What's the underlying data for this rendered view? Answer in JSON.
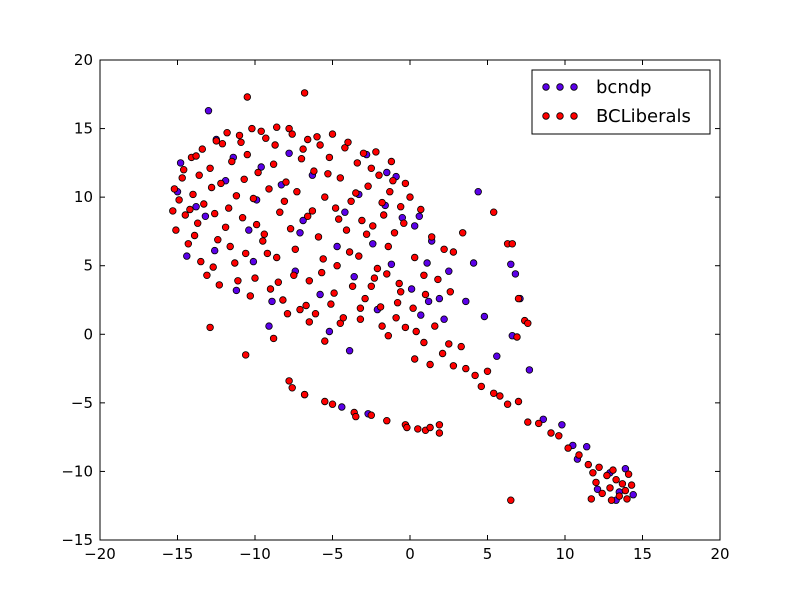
{
  "chart_data": {
    "type": "scatter",
    "title": "",
    "xlabel": "",
    "ylabel": "",
    "xlim": [
      -20,
      20
    ],
    "ylim": [
      -15,
      20
    ],
    "xticks": [
      -20,
      -15,
      -10,
      -5,
      0,
      5,
      10,
      15,
      20
    ],
    "yticks": [
      -15,
      -10,
      -5,
      0,
      5,
      10,
      15,
      20
    ],
    "grid": false,
    "legend_position": "top-right",
    "series": [
      {
        "name": "bcndp",
        "color": "#5b00e8",
        "points": [
          [
            -13,
            16.3
          ],
          [
            -14.8,
            12.5
          ],
          [
            -15,
            10.4
          ],
          [
            -13.2,
            8.6
          ],
          [
            -14.4,
            5.7
          ],
          [
            -12.5,
            14.2
          ],
          [
            -11.4,
            12.9
          ],
          [
            -11.2,
            3.2
          ],
          [
            -10.4,
            7.6
          ],
          [
            -10.1,
            5.3
          ],
          [
            -9.6,
            12.2
          ],
          [
            -9.1,
            0.6
          ],
          [
            -8.3,
            10.9
          ],
          [
            -7.8,
            13.2
          ],
          [
            -7.4,
            4.6
          ],
          [
            -6.9,
            8.3
          ],
          [
            -6.3,
            11.6
          ],
          [
            -5.8,
            2.9
          ],
          [
            -5.2,
            0.2
          ],
          [
            -4.7,
            6.4
          ],
          [
            -4.2,
            8.9
          ],
          [
            -3.9,
            -1.2
          ],
          [
            -3.6,
            4.2
          ],
          [
            -2.8,
            13.1
          ],
          [
            -2.4,
            6.6
          ],
          [
            -2.1,
            1.8
          ],
          [
            -1.6,
            9.4
          ],
          [
            -1.2,
            5.1
          ],
          [
            -0.9,
            11.5
          ],
          [
            -0.5,
            8.5
          ],
          [
            0.1,
            3.3
          ],
          [
            0.3,
            7.9
          ],
          [
            0.7,
            1.4
          ],
          [
            1.1,
            5.2
          ],
          [
            1.4,
            6.8
          ],
          [
            1.2,
            2.4
          ],
          [
            1.9,
            2.6
          ],
          [
            2.5,
            4.6
          ],
          [
            3.6,
            2.4
          ],
          [
            4.4,
            10.4
          ],
          [
            4.8,
            1.3
          ],
          [
            4.1,
            5.2
          ],
          [
            6.5,
            5.1
          ],
          [
            6.8,
            4.4
          ],
          [
            6.6,
            -0.1
          ],
          [
            7.1,
            2.6
          ],
          [
            5.6,
            -1.6
          ],
          [
            7.7,
            -2.6
          ],
          [
            8.6,
            -6.2
          ],
          [
            9.8,
            -6.6
          ],
          [
            10.5,
            -8.1
          ],
          [
            10.8,
            -9.1
          ],
          [
            11.4,
            -8.2
          ],
          [
            12.9,
            -10.1
          ],
          [
            13.3,
            -12.1
          ],
          [
            13.9,
            -9.8
          ],
          [
            14.4,
            -11.7
          ],
          [
            12.1,
            -11.3
          ],
          [
            -4.4,
            -5.3
          ],
          [
            -6.8,
            -4.4
          ],
          [
            -2.7,
            -5.8
          ],
          [
            -1.5,
            11.8
          ],
          [
            -11.9,
            11.2
          ],
          [
            -12.6,
            6.1
          ],
          [
            -8.9,
            2.4
          ],
          [
            -13.8,
            9.3
          ],
          [
            -9.9,
            9.8
          ],
          [
            -7.1,
            7.4
          ],
          [
            -3.3,
            10.2
          ],
          [
            2.2,
            1.1
          ],
          [
            0.6,
            8.6
          ],
          [
            13.5,
            -11.5
          ]
        ]
      },
      {
        "name": "BCLiberals",
        "color": "#ff0000",
        "points": [
          [
            -10.5,
            17.3
          ],
          [
            -6.8,
            17.6
          ],
          [
            -12.9,
            0.5
          ],
          [
            -10.6,
            -1.5
          ],
          [
            -8.8,
            -0.3
          ],
          [
            -7.9,
            1.5
          ],
          [
            -6.5,
            0.9
          ],
          [
            -5.5,
            -0.5
          ],
          [
            -4.5,
            0.8
          ],
          [
            -3.2,
            1.9
          ],
          [
            -2.5,
            3.5
          ],
          [
            -1.8,
            0.6
          ],
          [
            -0.8,
            2.3
          ],
          [
            -15.3,
            9.0
          ],
          [
            -15.1,
            7.6
          ],
          [
            -14.7,
            11.4
          ],
          [
            -14.3,
            6.6
          ],
          [
            -14.1,
            12.9
          ],
          [
            -13.7,
            8.1
          ],
          [
            -13.4,
            13.5
          ],
          [
            -13.1,
            4.3
          ],
          [
            -12.8,
            10.7
          ],
          [
            -12.4,
            6.9
          ],
          [
            -12.1,
            13.9
          ],
          [
            -11.7,
            9.2
          ],
          [
            -11.3,
            5.2
          ],
          [
            -11.0,
            14.5
          ],
          [
            -10.7,
            11.3
          ],
          [
            -10.3,
            2.8
          ],
          [
            -9.9,
            8.0
          ],
          [
            -9.6,
            14.8
          ],
          [
            -9.2,
            5.9
          ],
          [
            -8.8,
            12.4
          ],
          [
            -8.5,
            3.8
          ],
          [
            -8.1,
            9.7
          ],
          [
            -7.8,
            15.0
          ],
          [
            -7.4,
            6.2
          ],
          [
            -7.0,
            12.8
          ],
          [
            -6.7,
            2.1
          ],
          [
            -6.3,
            9.0
          ],
          [
            -6.0,
            14.4
          ],
          [
            -5.6,
            5.5
          ],
          [
            -5.3,
            11.7
          ],
          [
            -4.9,
            3.0
          ],
          [
            -4.6,
            8.4
          ],
          [
            -4.2,
            13.6
          ],
          [
            -3.9,
            6.0
          ],
          [
            -3.5,
            10.3
          ],
          [
            -3.2,
            1.1
          ],
          [
            -2.8,
            7.3
          ],
          [
            -2.5,
            12.1
          ],
          [
            -2.1,
            4.8
          ],
          [
            -1.8,
            9.6
          ],
          [
            -1.4,
            6.4
          ],
          [
            -1.1,
            11.2
          ],
          [
            -0.7,
            3.7
          ],
          [
            -0.4,
            8.1
          ],
          [
            0.0,
            10.0
          ],
          [
            0.3,
            5.6
          ],
          [
            0.7,
            9.1
          ],
          [
            1.0,
            2.9
          ],
          [
            1.4,
            7.1
          ],
          [
            1.8,
            4.0
          ],
          [
            2.2,
            6.2
          ],
          [
            2.8,
            6.0
          ],
          [
            3.4,
            7.4
          ],
          [
            2.6,
            3.1
          ],
          [
            5.4,
            8.9
          ],
          [
            6.3,
            6.6
          ],
          [
            6.6,
            6.6
          ],
          [
            7.0,
            2.6
          ],
          [
            7.4,
            1.0
          ],
          [
            7.6,
            0.8
          ],
          [
            6.9,
            -0.2
          ],
          [
            -1.4,
            -0.1
          ],
          [
            -0.3,
            0.5
          ],
          [
            0.4,
            0.2
          ],
          [
            0.3,
            -1.8
          ],
          [
            0.9,
            -0.6
          ],
          [
            1.3,
            -2.2
          ],
          [
            1.6,
            0.6
          ],
          [
            2.1,
            -1.4
          ],
          [
            2.5,
            -0.7
          ],
          [
            2.8,
            -2.3
          ],
          [
            3.3,
            -0.9
          ],
          [
            3.6,
            -2.5
          ],
          [
            4.2,
            -3.0
          ],
          [
            4.6,
            -3.8
          ],
          [
            5.0,
            -2.7
          ],
          [
            5.4,
            -4.3
          ],
          [
            5.8,
            -4.5
          ],
          [
            6.3,
            -5.1
          ],
          [
            7.0,
            -4.9
          ],
          [
            7.6,
            -6.4
          ],
          [
            8.3,
            -6.5
          ],
          [
            9.1,
            -7.2
          ],
          [
            9.6,
            -7.4
          ],
          [
            10.2,
            -8.3
          ],
          [
            10.9,
            -8.8
          ],
          [
            11.5,
            -9.5
          ],
          [
            11.8,
            -10.1
          ],
          [
            12.0,
            -10.8
          ],
          [
            12.4,
            -11.6
          ],
          [
            12.7,
            -10.3
          ],
          [
            12.9,
            -11.2
          ],
          [
            13.1,
            -9.9
          ],
          [
            13.3,
            -10.6
          ],
          [
            13.5,
            -11.8
          ],
          [
            13.7,
            -10.9
          ],
          [
            13.9,
            -11.4
          ],
          [
            14.1,
            -10.2
          ],
          [
            14.3,
            -11.0
          ],
          [
            12.2,
            -9.7
          ],
          [
            11.7,
            -12.0
          ],
          [
            13.0,
            -12.1
          ],
          [
            14.0,
            -12.0
          ],
          [
            6.5,
            -12.1
          ],
          [
            -7.8,
            -3.4
          ],
          [
            -7.6,
            -3.9
          ],
          [
            -6.8,
            -4.4
          ],
          [
            -5.5,
            -4.9
          ],
          [
            -5.0,
            -5.1
          ],
          [
            -3.6,
            -5.7
          ],
          [
            -3.5,
            -6.0
          ],
          [
            -2.5,
            -5.9
          ],
          [
            -1.5,
            -6.3
          ],
          [
            -0.3,
            -6.6
          ],
          [
            -0.2,
            -6.8
          ],
          [
            0.5,
            -6.9
          ],
          [
            1.0,
            -7.0
          ],
          [
            1.3,
            -6.8
          ],
          [
            1.9,
            -7.2
          ],
          [
            1.9,
            -6.6
          ],
          [
            -14.9,
            9.8
          ],
          [
            -14.5,
            8.7
          ],
          [
            -14.0,
            10.2
          ],
          [
            -13.6,
            11.6
          ],
          [
            -13.3,
            9.5
          ],
          [
            -12.9,
            12.1
          ],
          [
            -12.6,
            8.8
          ],
          [
            -12.2,
            11.0
          ],
          [
            -11.9,
            7.8
          ],
          [
            -11.5,
            12.6
          ],
          [
            -11.2,
            10.1
          ],
          [
            -10.8,
            8.5
          ],
          [
            -10.5,
            13.1
          ],
          [
            -10.1,
            9.9
          ],
          [
            -9.8,
            11.8
          ],
          [
            -9.4,
            7.3
          ],
          [
            -9.1,
            10.6
          ],
          [
            -8.7,
            13.8
          ],
          [
            -8.4,
            8.9
          ],
          [
            -8.0,
            11.1
          ],
          [
            -7.7,
            7.7
          ],
          [
            -7.3,
            10.4
          ],
          [
            -6.9,
            13.5
          ],
          [
            -6.6,
            8.6
          ],
          [
            -6.2,
            11.9
          ],
          [
            -5.9,
            7.1
          ],
          [
            -5.5,
            10.0
          ],
          [
            -5.2,
            12.9
          ],
          [
            -4.8,
            9.2
          ],
          [
            -4.5,
            11.4
          ],
          [
            -4.1,
            7.6
          ],
          [
            -3.8,
            9.7
          ],
          [
            -3.4,
            12.5
          ],
          [
            -3.1,
            8.3
          ],
          [
            -2.7,
            10.8
          ],
          [
            -2.4,
            7.9
          ],
          [
            -2.0,
            11.6
          ],
          [
            -1.7,
            8.7
          ],
          [
            -1.3,
            10.4
          ],
          [
            -1.0,
            7.4
          ],
          [
            -0.6,
            9.3
          ],
          [
            -0.3,
            11.0
          ],
          [
            -13.9,
            7.2
          ],
          [
            -13.5,
            5.3
          ],
          [
            -12.7,
            4.9
          ],
          [
            -12.3,
            3.6
          ],
          [
            -11.6,
            6.4
          ],
          [
            -11.1,
            3.9
          ],
          [
            -10.6,
            5.9
          ],
          [
            -10.0,
            4.1
          ],
          [
            -9.5,
            6.8
          ],
          [
            -9.0,
            3.3
          ],
          [
            -8.6,
            5.6
          ],
          [
            -8.2,
            2.5
          ],
          [
            -7.5,
            4.3
          ],
          [
            -7.1,
            1.8
          ],
          [
            -6.5,
            3.9
          ],
          [
            -6.1,
            1.5
          ],
          [
            -5.7,
            4.5
          ],
          [
            -5.1,
            2.2
          ],
          [
            -4.7,
            5.0
          ],
          [
            -4.3,
            1.2
          ],
          [
            -3.7,
            3.5
          ],
          [
            -3.3,
            5.7
          ],
          [
            -2.9,
            2.6
          ],
          [
            -2.3,
            4.1
          ],
          [
            -1.9,
            2.0
          ],
          [
            -1.5,
            4.4
          ],
          [
            -0.9,
            1.2
          ],
          [
            -0.6,
            3.1
          ],
          [
            0.2,
            1.9
          ],
          [
            0.9,
            4.3
          ],
          [
            -15.2,
            10.6
          ],
          [
            -14.6,
            12.0
          ],
          [
            -14.2,
            9.1
          ],
          [
            -13.8,
            13.0
          ],
          [
            -12.5,
            14.1
          ],
          [
            -11.8,
            14.7
          ],
          [
            -10.9,
            14.0
          ],
          [
            -10.2,
            15.0
          ],
          [
            -9.3,
            14.3
          ],
          [
            -8.6,
            15.1
          ],
          [
            -7.6,
            14.6
          ],
          [
            -6.6,
            14.2
          ],
          [
            -5.8,
            13.8
          ],
          [
            -5.0,
            14.6
          ],
          [
            -4.0,
            14.0
          ],
          [
            -3.0,
            13.2
          ],
          [
            -2.2,
            13.3
          ],
          [
            -1.2,
            12.6
          ]
        ]
      }
    ]
  }
}
